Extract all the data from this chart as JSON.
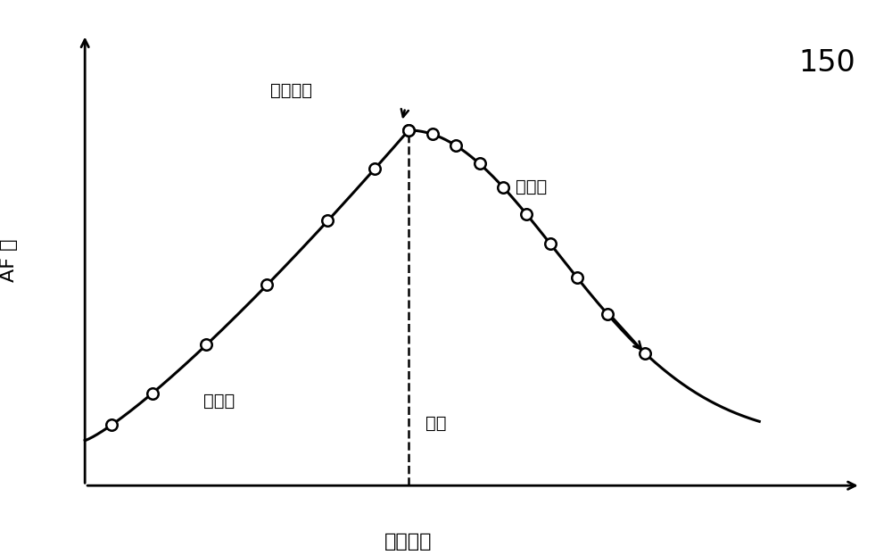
{
  "title_label": "150",
  "ylabel": "AF 値",
  "xlabel": "透镜位置",
  "label_coarse": "粗扫描",
  "label_fine": "细扫描",
  "label_focus": "聚焦",
  "label_final": "最终定位",
  "background_color": "#ffffff",
  "curve_color": "#000000",
  "dashed_color": "#000000",
  "marker_color": "#ffffff",
  "marker_edge_color": "#000000",
  "fig_width": 10.0,
  "fig_height": 6.22
}
